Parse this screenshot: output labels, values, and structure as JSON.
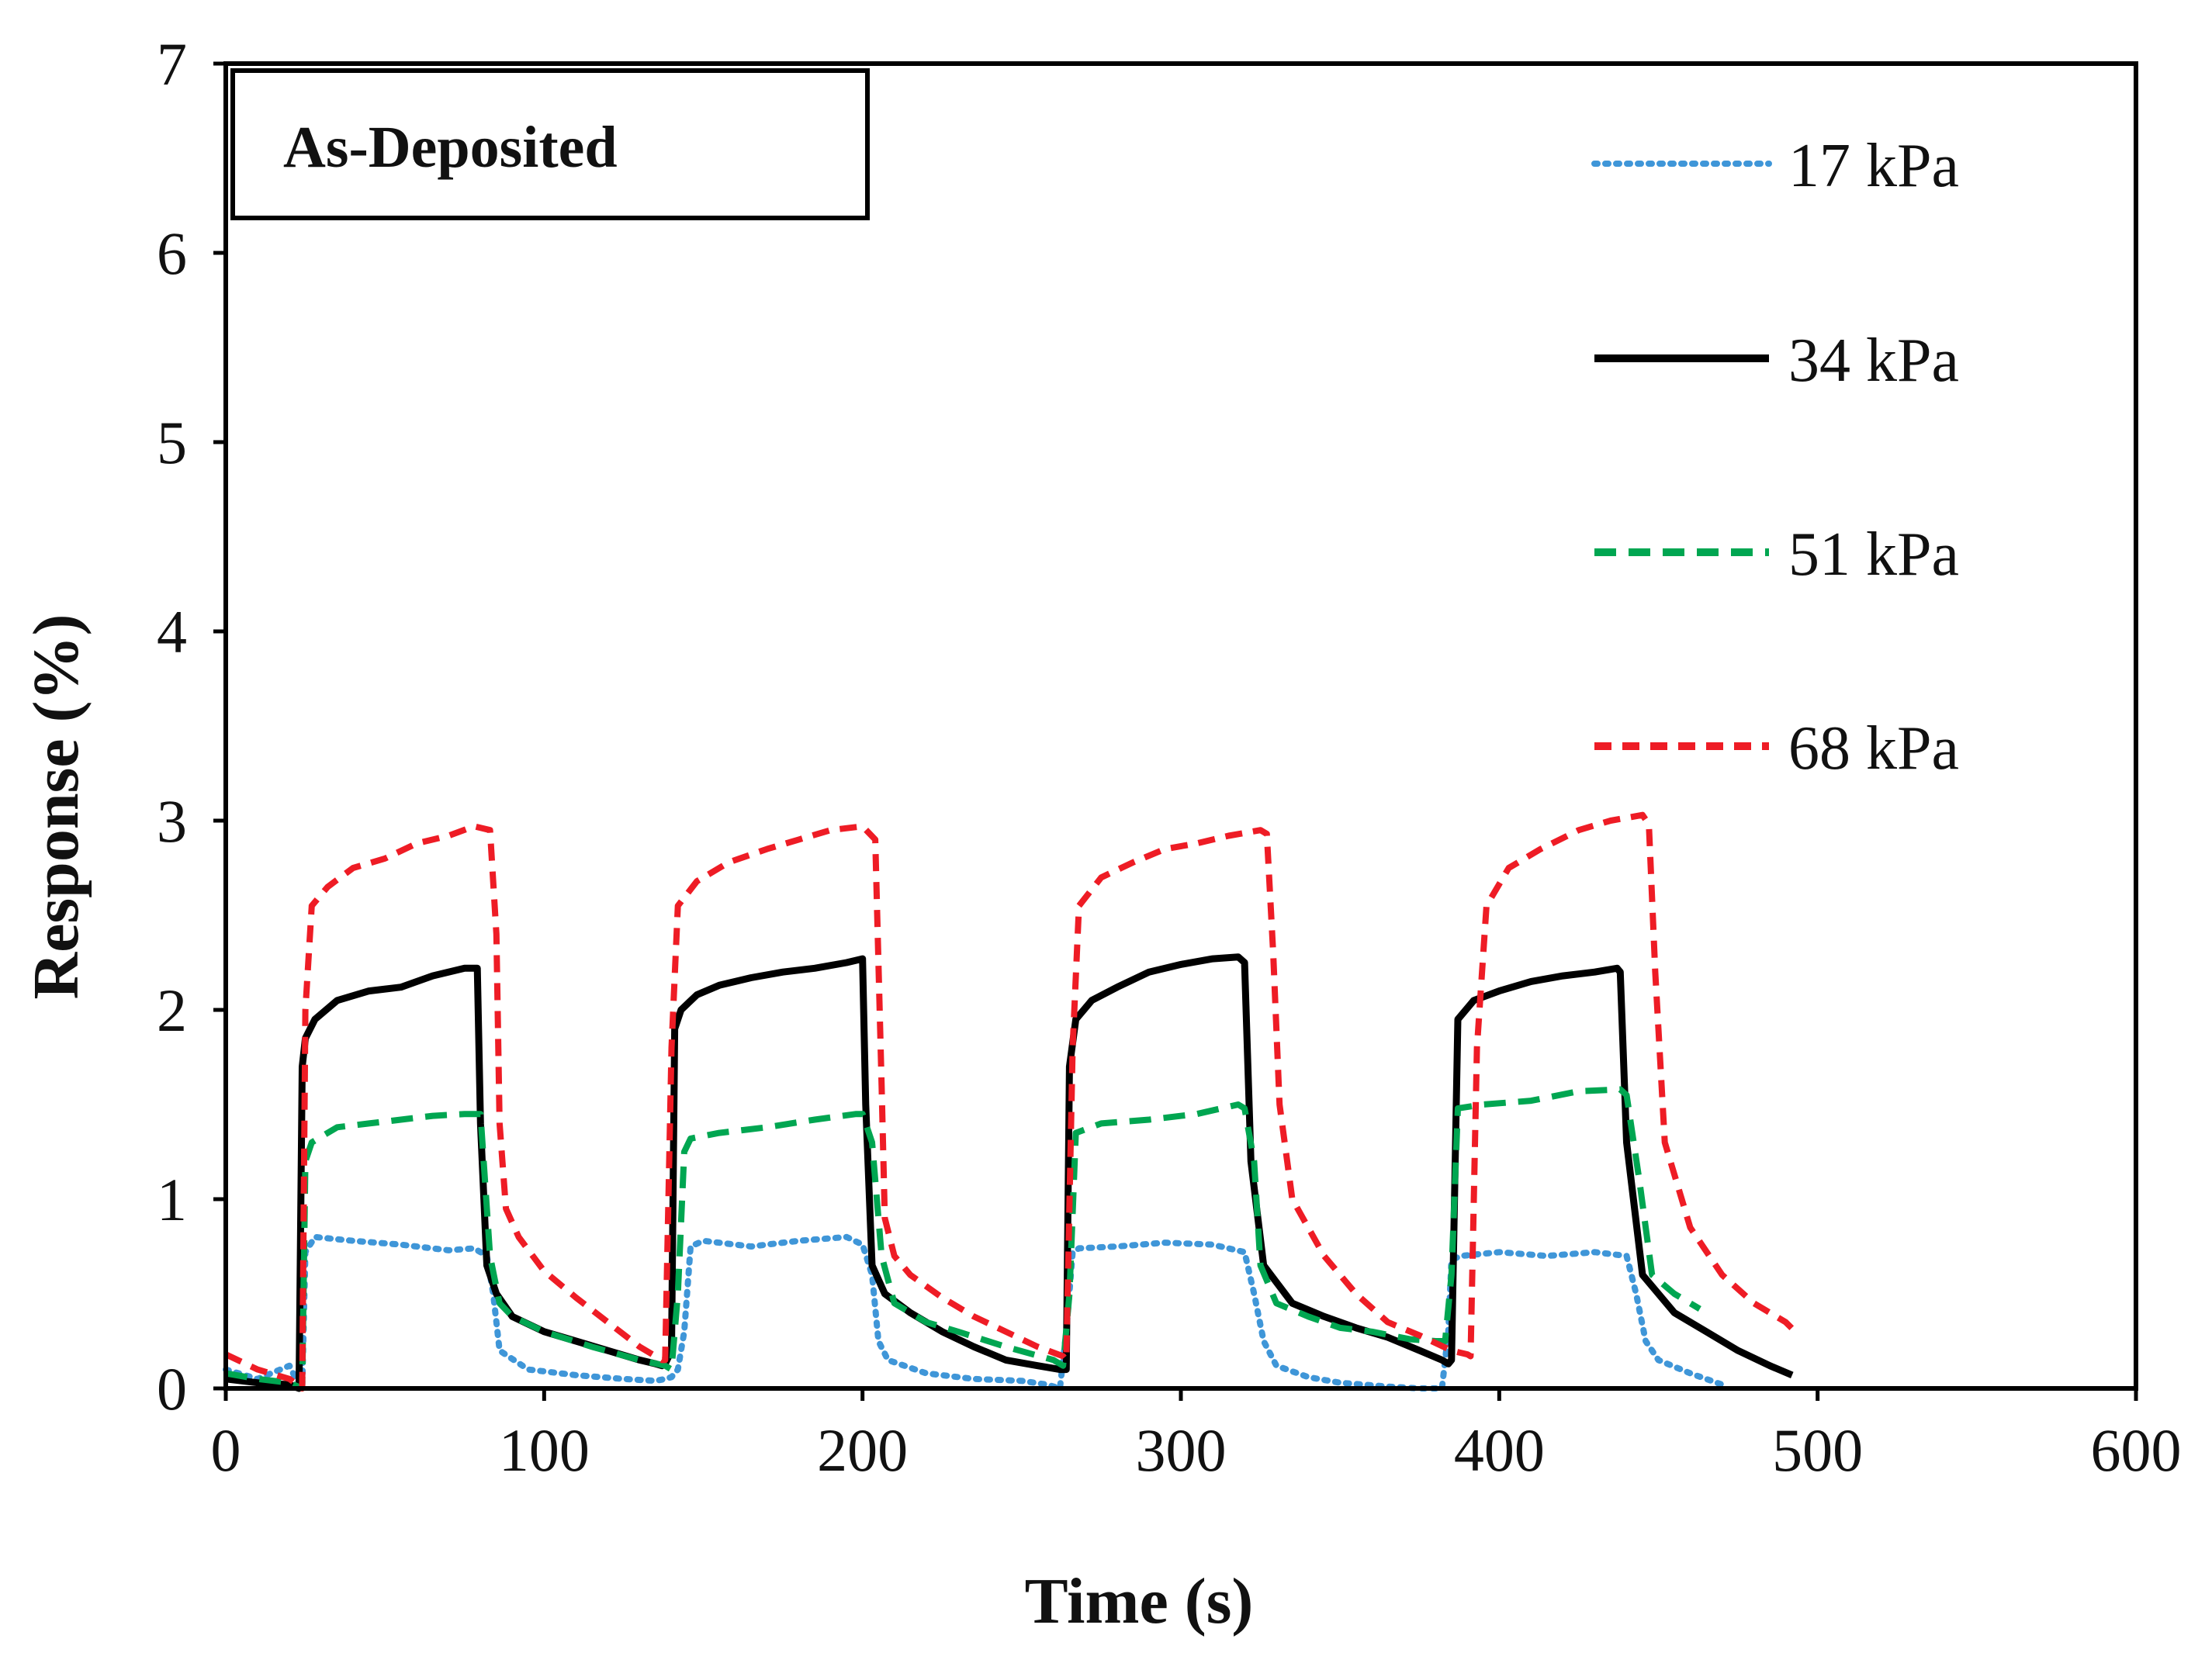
{
  "chart_data": {
    "type": "line",
    "title": "",
    "annotation": "As-Deposited",
    "xlabel": "Time (s)",
    "ylabel": "Response (%)",
    "xlim": [
      0,
      600
    ],
    "ylim": [
      0,
      7
    ],
    "xticks": [
      0,
      100,
      200,
      300,
      400,
      500,
      600
    ],
    "yticks": [
      0,
      1,
      2,
      3,
      4,
      5,
      6,
      7
    ],
    "xtick_labels": [
      "0",
      "100",
      "200",
      "300",
      "400",
      "500",
      "600"
    ],
    "ytick_labels": [
      "0",
      "1",
      "2",
      "3",
      "4",
      "5",
      "6",
      "7"
    ],
    "grid": false,
    "legend_position": "top-right",
    "series": [
      {
        "name": "17 kPa",
        "color": "#3f96d8",
        "style": "dotted",
        "x": [
          0,
          10,
          20,
          22,
          24,
          25,
          28,
          40,
          55,
          70,
          78,
          82,
          84,
          86,
          95,
          110,
          125,
          135,
          138,
          140,
          142,
          144,
          146,
          150,
          165,
          180,
          195,
          200,
          203,
          205,
          208,
          220,
          235,
          250,
          258,
          262,
          264,
          266,
          268,
          280,
          295,
          310,
          320,
          323,
          326,
          330,
          340,
          350,
          365,
          375,
          380,
          382,
          384,
          385,
          388,
          400,
          415,
          430,
          440,
          443,
          446,
          450,
          460,
          470
        ],
        "y": [
          0.1,
          0.05,
          0.12,
          0.05,
          0.0,
          0.72,
          0.8,
          0.78,
          0.76,
          0.73,
          0.74,
          0.7,
          0.5,
          0.2,
          0.1,
          0.07,
          0.05,
          0.04,
          0.05,
          0.06,
          0.1,
          0.3,
          0.75,
          0.78,
          0.75,
          0.78,
          0.8,
          0.76,
          0.6,
          0.25,
          0.15,
          0.08,
          0.05,
          0.04,
          0.02,
          0.0,
          0.3,
          0.72,
          0.74,
          0.75,
          0.77,
          0.76,
          0.72,
          0.5,
          0.25,
          0.12,
          0.06,
          0.03,
          0.01,
          0.0,
          0.0,
          0.0,
          0.3,
          0.68,
          0.7,
          0.72,
          0.7,
          0.72,
          0.7,
          0.5,
          0.25,
          0.15,
          0.08,
          0.02
        ]
      },
      {
        "name": "34 kPa",
        "color": "#000000",
        "style": "solid",
        "x": [
          0,
          10,
          20,
          23,
          24,
          25,
          28,
          35,
          45,
          55,
          65,
          75,
          79,
          80,
          82,
          85,
          90,
          100,
          110,
          120,
          130,
          135,
          137,
          138,
          140,
          141,
          143,
          148,
          155,
          165,
          175,
          185,
          195,
          200,
          201,
          203,
          207,
          215,
          225,
          235,
          245,
          255,
          262,
          264,
          265,
          267,
          272,
          280,
          290,
          300,
          310,
          318,
          320,
          322,
          326,
          335,
          345,
          355,
          365,
          375,
          382,
          384,
          385,
          387,
          392,
          400,
          410,
          420,
          430,
          437,
          438,
          440,
          445,
          455,
          465,
          475,
          485,
          492
        ],
        "y": [
          0.05,
          0.03,
          0.02,
          0.0,
          1.7,
          1.85,
          1.95,
          2.05,
          2.1,
          2.12,
          2.18,
          2.22,
          2.22,
          1.4,
          0.65,
          0.5,
          0.38,
          0.3,
          0.25,
          0.2,
          0.15,
          0.13,
          0.12,
          0.13,
          0.2,
          1.9,
          2.0,
          2.08,
          2.13,
          2.17,
          2.2,
          2.22,
          2.25,
          2.27,
          1.5,
          0.65,
          0.5,
          0.4,
          0.3,
          0.22,
          0.15,
          0.12,
          0.1,
          0.1,
          1.7,
          1.95,
          2.05,
          2.12,
          2.2,
          2.24,
          2.27,
          2.28,
          2.25,
          1.2,
          0.65,
          0.45,
          0.38,
          0.32,
          0.27,
          0.2,
          0.15,
          0.13,
          0.15,
          1.95,
          2.05,
          2.1,
          2.15,
          2.18,
          2.2,
          2.22,
          2.2,
          1.3,
          0.6,
          0.4,
          0.3,
          0.2,
          0.12,
          0.07
        ]
      },
      {
        "name": "51 kPa",
        "color": "#00a651",
        "style": "dashed",
        "x": [
          0,
          10,
          20,
          24,
          25,
          27,
          35,
          45,
          55,
          65,
          75,
          80,
          81,
          83,
          86,
          90,
          100,
          115,
          130,
          138,
          140,
          142,
          144,
          146,
          155,
          170,
          185,
          198,
          200,
          203,
          206,
          210,
          220,
          230,
          245,
          260,
          263,
          265,
          267,
          275,
          290,
          305,
          318,
          320,
          323,
          325,
          330,
          340,
          350,
          360,
          372,
          380,
          383,
          385,
          387,
          395,
          410,
          425,
          438,
          440,
          444,
          448,
          455,
          463
        ],
        "y": [
          0.08,
          0.05,
          0.03,
          0.0,
          1.2,
          1.3,
          1.38,
          1.4,
          1.42,
          1.44,
          1.45,
          1.45,
          1.2,
          0.7,
          0.45,
          0.38,
          0.3,
          0.22,
          0.15,
          0.12,
          0.1,
          0.5,
          1.25,
          1.32,
          1.35,
          1.38,
          1.42,
          1.45,
          1.45,
          1.3,
          0.7,
          0.45,
          0.35,
          0.3,
          0.22,
          0.15,
          0.12,
          0.5,
          1.35,
          1.4,
          1.42,
          1.45,
          1.5,
          1.48,
          1.2,
          0.65,
          0.45,
          0.38,
          0.32,
          0.3,
          0.26,
          0.25,
          0.25,
          0.6,
          1.48,
          1.5,
          1.52,
          1.57,
          1.58,
          1.55,
          1.1,
          0.6,
          0.5,
          0.42
        ]
      },
      {
        "name": "68 kPa",
        "color": "#ee1c25",
        "style": "dashed",
        "x": [
          0,
          10,
          20,
          24,
          25,
          27,
          32,
          40,
          50,
          60,
          70,
          78,
          83,
          85,
          86,
          88,
          92,
          100,
          110,
          120,
          130,
          137,
          138,
          140,
          142,
          148,
          158,
          170,
          180,
          190,
          200,
          204,
          206,
          207,
          210,
          215,
          225,
          235,
          245,
          255,
          263,
          264,
          266,
          268,
          275,
          285,
          295,
          305,
          315,
          325,
          327,
          329,
          331,
          335,
          345,
          355,
          365,
          375,
          385,
          390,
          391,
          393,
          396,
          403,
          413,
          425,
          435,
          445,
          447,
          449,
          452,
          460,
          470,
          480,
          490,
          493
        ],
        "y": [
          0.18,
          0.1,
          0.05,
          0.0,
          2.0,
          2.55,
          2.65,
          2.75,
          2.8,
          2.88,
          2.92,
          2.97,
          2.95,
          2.4,
          1.4,
          0.95,
          0.8,
          0.62,
          0.48,
          0.35,
          0.22,
          0.15,
          0.15,
          1.8,
          2.55,
          2.68,
          2.78,
          2.85,
          2.9,
          2.95,
          2.97,
          2.9,
          1.6,
          0.9,
          0.7,
          0.6,
          0.48,
          0.38,
          0.3,
          0.22,
          0.17,
          0.15,
          1.8,
          2.55,
          2.7,
          2.78,
          2.85,
          2.88,
          2.92,
          2.95,
          2.93,
          2.3,
          1.5,
          1.0,
          0.7,
          0.5,
          0.35,
          0.28,
          0.2,
          0.18,
          0.17,
          1.8,
          2.55,
          2.75,
          2.85,
          2.95,
          3.0,
          3.03,
          2.98,
          2.2,
          1.3,
          0.85,
          0.6,
          0.45,
          0.35,
          0.3
        ]
      }
    ]
  }
}
